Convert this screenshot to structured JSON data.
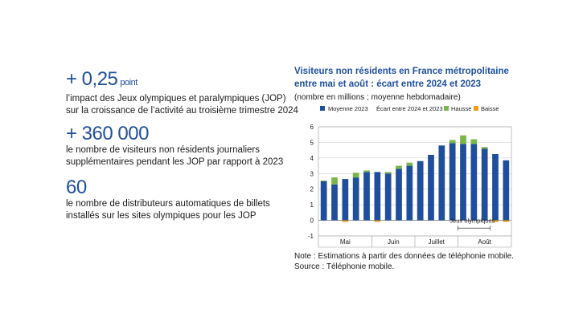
{
  "stats": [
    {
      "value": "+ 0,25",
      "unit": "point",
      "desc_lines": [
        "l’impact des Jeux olympiques et paralympiques (JOP)",
        "sur la croissance de l’activité au troisième trimestre 2024"
      ]
    },
    {
      "value": "+ 360 000",
      "unit": "",
      "desc_lines": [
        "le nombre de visiteurs non résidents journaliers",
        "supplémentaires pendant les JOP par rapport à 2023"
      ]
    },
    {
      "value": "60",
      "unit": "",
      "desc_lines": [
        "le nombre de distributeurs automatiques de billets",
        "installés sur les sites olympiques pour les JOP"
      ]
    }
  ],
  "chart_data": {
    "type": "bar",
    "title_lines": [
      "Visiteurs non résidents en France métropolitaine",
      "entre mai et août : écart entre 2024 et 2023"
    ],
    "subtitle": "(nombre en millions ; moyenne hebdomadaire)",
    "legend": {
      "base": "Moyenne 2023",
      "ecart_label": "Écart entre 2024 et 2023 :",
      "up": "Hausse",
      "down": "Baisse"
    },
    "colors": {
      "base": "#1f4f9c",
      "up": "#7ab648",
      "down": "#f39c12"
    },
    "ylim": [
      -1,
      6
    ],
    "yticks": [
      -1,
      0,
      1,
      2,
      3,
      4,
      5,
      6
    ],
    "months": [
      "Mai",
      "Juin",
      "Juillet",
      "Août"
    ],
    "month_week_counts": [
      5,
      4,
      4,
      5
    ],
    "annotation": "Jeux olympiques",
    "annotation_weeks": [
      13,
      15
    ],
    "base_2023": [
      2.5,
      2.3,
      2.65,
      2.75,
      3.1,
      3.1,
      3.0,
      3.3,
      3.5,
      3.8,
      4.2,
      4.8,
      4.95,
      4.9,
      4.9,
      4.6,
      4.25,
      3.85
    ],
    "diff_2024": [
      0.05,
      0.45,
      0.0,
      0.3,
      0.1,
      0.0,
      0.1,
      0.2,
      0.2,
      0.0,
      0.0,
      0.0,
      0.2,
      0.55,
      0.3,
      0.1,
      0.0,
      0.0
    ],
    "down_2024": [
      0.0,
      0.0,
      -0.1,
      0.0,
      0.0,
      -0.1,
      0.0,
      0.0,
      0.0,
      0.0,
      0.0,
      0.0,
      0.0,
      0.0,
      0.0,
      0.0,
      -0.1,
      -0.1
    ]
  },
  "notes": [
    "Note : Estimations à partir des données de téléphonie mobile.",
    "Source : Téléphonie mobile."
  ]
}
